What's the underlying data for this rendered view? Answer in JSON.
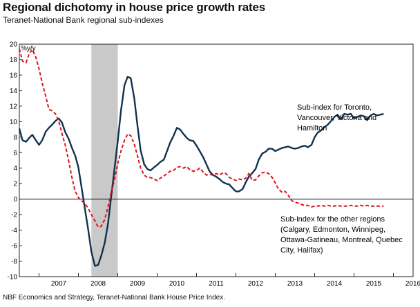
{
  "header": {
    "title": "Regional dichotomy in house price growth rates",
    "subtitle": "Teranet-National Bank regional sub-indexes"
  },
  "footer": {
    "source": "NBF Economics and Strategy, Teranet-National Bank House Price Index."
  },
  "chart_data": {
    "type": "line",
    "ylabel": "%y/y",
    "xlabel": "",
    "ylim": [
      -10,
      20
    ],
    "yticks": [
      -10,
      -8,
      -6,
      -4,
      -2,
      0,
      2,
      4,
      6,
      8,
      10,
      12,
      14,
      16,
      18,
      20
    ],
    "xlim": [
      2006.5,
      2016.5
    ],
    "xtick_labels": [
      "2007",
      "2008",
      "2009",
      "2010",
      "2011",
      "2012",
      "2013",
      "2014",
      "2015",
      "2016"
    ],
    "grid": false,
    "recession_band": [
      2008.33,
      2009.0
    ],
    "colors": {
      "series_1": "#10324f",
      "series_2": "#e0121b",
      "band": "#c9c9c9"
    },
    "series": [
      {
        "name": "Sub-index for Toronto, Vancouver, Victoria and Hamilton",
        "label_lines": [
          "Sub-index for Toronto,",
          "Vancouver, Victoria and",
          "Hamilton"
        ],
        "style": "solid",
        "x": [
          2006.5,
          2006.58,
          2006.67,
          2006.75,
          2006.83,
          2006.92,
          2007.0,
          2007.08,
          2007.17,
          2007.25,
          2007.33,
          2007.42,
          2007.5,
          2007.58,
          2007.67,
          2007.75,
          2007.83,
          2007.92,
          2008.0,
          2008.08,
          2008.17,
          2008.25,
          2008.33,
          2008.42,
          2008.5,
          2008.58,
          2008.67,
          2008.75,
          2008.83,
          2008.92,
          2009.0,
          2009.08,
          2009.17,
          2009.25,
          2009.33,
          2009.42,
          2009.5,
          2009.58,
          2009.67,
          2009.75,
          2009.83,
          2009.92,
          2010.0,
          2010.08,
          2010.17,
          2010.25,
          2010.33,
          2010.42,
          2010.5,
          2010.58,
          2010.67,
          2010.75,
          2010.83,
          2010.92,
          2011.0,
          2011.08,
          2011.17,
          2011.25,
          2011.33,
          2011.42,
          2011.5,
          2011.58,
          2011.67,
          2011.75,
          2011.83,
          2011.92,
          2012.0,
          2012.08,
          2012.17,
          2012.25,
          2012.33,
          2012.42,
          2012.5,
          2012.58,
          2012.67,
          2012.75,
          2012.83,
          2012.92,
          2013.0,
          2013.08,
          2013.17,
          2013.25,
          2013.33,
          2013.42,
          2013.5,
          2013.58,
          2013.67,
          2013.75,
          2013.83,
          2013.92,
          2014.0,
          2014.08,
          2014.17,
          2014.25,
          2014.33,
          2014.42,
          2014.5,
          2014.58,
          2014.67,
          2014.75,
          2014.83,
          2014.92,
          2015.0,
          2015.08,
          2015.17,
          2015.25,
          2015.33,
          2015.42,
          2015.5,
          2015.58,
          2015.67,
          2015.75
        ],
        "values": [
          9.1,
          7.6,
          7.4,
          7.9,
          8.3,
          7.6,
          7.0,
          7.6,
          8.7,
          9.2,
          9.6,
          10.1,
          10.4,
          9.9,
          8.6,
          7.8,
          6.7,
          5.6,
          4.1,
          1.5,
          -1.4,
          -4.0,
          -6.8,
          -8.6,
          -8.5,
          -7.3,
          -5.6,
          -3.2,
          0.2,
          4.0,
          7.5,
          11.4,
          14.7,
          15.8,
          15.6,
          13.0,
          9.5,
          6.3,
          4.5,
          3.9,
          3.7,
          4.1,
          4.4,
          4.8,
          5.1,
          6.2,
          7.3,
          8.2,
          9.2,
          9.0,
          8.4,
          7.9,
          7.6,
          7.5,
          6.9,
          6.2,
          5.4,
          4.5,
          3.6,
          3.1,
          2.9,
          2.6,
          2.2,
          2.0,
          1.9,
          1.4,
          1.0,
          1.0,
          1.3,
          2.2,
          2.9,
          3.4,
          3.9,
          5.1,
          5.9,
          6.1,
          6.5,
          6.5,
          6.2,
          6.4,
          6.6,
          6.7,
          6.8,
          6.6,
          6.5,
          6.6,
          6.8,
          6.9,
          6.7,
          7.0,
          8.0,
          8.6,
          8.9,
          9.3,
          9.6,
          10.1,
          10.6,
          10.9,
          10.3,
          11.0,
          10.9,
          11.0,
          10.4,
          10.6,
          10.8,
          10.7,
          10.2,
          10.8,
          11.0,
          10.8,
          10.9,
          11.0
        ]
      },
      {
        "name": "Sub-index for the other regions (Calgary, Edmonton, Winnipeg, Ottawa-Gatineau, Montreal, Quebec City, Halifax)",
        "label_lines": [
          "Sub-index for the other regions",
          "(Calgary, Edmonton, Winnipeg,",
          "Ottawa-Gatineau, Montreal, Quebec",
          "City, Halifax)"
        ],
        "style": "dashed",
        "x": [
          2006.5,
          2006.58,
          2006.67,
          2006.75,
          2006.83,
          2006.92,
          2007.0,
          2007.08,
          2007.17,
          2007.25,
          2007.33,
          2007.42,
          2007.5,
          2007.58,
          2007.67,
          2007.75,
          2007.83,
          2007.92,
          2008.0,
          2008.08,
          2008.17,
          2008.25,
          2008.33,
          2008.42,
          2008.5,
          2008.58,
          2008.67,
          2008.75,
          2008.83,
          2008.92,
          2009.0,
          2009.08,
          2009.17,
          2009.25,
          2009.33,
          2009.42,
          2009.5,
          2009.58,
          2009.67,
          2009.75,
          2009.83,
          2009.92,
          2010.0,
          2010.08,
          2010.17,
          2010.25,
          2010.33,
          2010.42,
          2010.5,
          2010.58,
          2010.67,
          2010.75,
          2010.83,
          2010.92,
          2011.0,
          2011.08,
          2011.17,
          2011.25,
          2011.33,
          2011.42,
          2011.5,
          2011.58,
          2011.67,
          2011.75,
          2011.83,
          2011.92,
          2012.0,
          2012.08,
          2012.17,
          2012.25,
          2012.33,
          2012.42,
          2012.5,
          2012.58,
          2012.67,
          2012.75,
          2012.83,
          2012.92,
          2013.0,
          2013.08,
          2013.17,
          2013.25,
          2013.33,
          2013.42,
          2013.5,
          2013.58,
          2013.67,
          2013.75,
          2013.83,
          2013.92,
          2014.0,
          2014.08,
          2014.17,
          2014.25,
          2014.33,
          2014.42,
          2014.5,
          2014.58,
          2014.67,
          2014.75,
          2014.83,
          2014.92,
          2015.0,
          2015.08,
          2015.17,
          2015.25,
          2015.33,
          2015.42,
          2015.5,
          2015.58,
          2015.67,
          2015.75
        ],
        "values": [
          19.4,
          17.8,
          17.6,
          18.8,
          19.3,
          18.3,
          16.8,
          15.0,
          13.3,
          11.6,
          11.4,
          11.0,
          10.1,
          8.5,
          6.9,
          5.0,
          2.9,
          1.0,
          0.2,
          -0.2,
          -0.6,
          -1.2,
          -2.0,
          -2.8,
          -3.6,
          -3.5,
          -2.6,
          -1.0,
          0.8,
          2.6,
          4.6,
          6.2,
          7.6,
          8.4,
          8.2,
          7.1,
          5.6,
          4.0,
          3.1,
          2.8,
          2.8,
          2.6,
          2.4,
          2.7,
          3.0,
          3.3,
          3.6,
          3.7,
          4.1,
          4.2,
          4.0,
          4.2,
          3.8,
          3.6,
          3.7,
          4.0,
          3.5,
          3.1,
          3.2,
          3.1,
          3.3,
          3.1,
          3.4,
          3.3,
          2.8,
          2.6,
          2.4,
          2.6,
          2.5,
          2.7,
          3.3,
          2.4,
          2.5,
          3.0,
          3.4,
          3.5,
          3.3,
          2.8,
          2.1,
          1.3,
          0.9,
          1.0,
          0.5,
          -0.2,
          -0.4,
          -0.5,
          -0.7,
          -0.8,
          -0.8,
          -1.0,
          -0.9,
          -0.9,
          -0.8,
          -0.9,
          -0.8,
          -0.9,
          -0.9,
          -0.8,
          -0.9,
          -0.9,
          -0.9,
          -0.8,
          -0.9,
          -0.9,
          -0.8,
          -0.9,
          -0.8,
          -0.9,
          -0.9,
          -0.9,
          -0.9,
          -0.9
        ]
      }
    ]
  }
}
